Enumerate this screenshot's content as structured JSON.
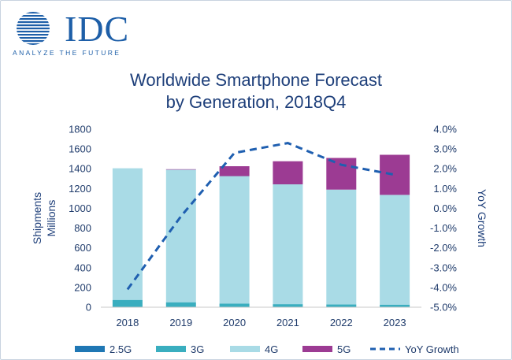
{
  "brand": {
    "name": "IDC",
    "tagline": "ANALYZE THE FUTURE",
    "color": "#1e5fa8"
  },
  "chart_data": {
    "type": "bar",
    "title_line1": "Worldwide Smartphone Forecast",
    "title_line2": "by Generation, 2018Q4",
    "categories": [
      "2018",
      "2019",
      "2020",
      "2021",
      "2022",
      "2023"
    ],
    "stacked": true,
    "series": [
      {
        "name": "2.5G",
        "color": "#1f77b4",
        "values": [
          4,
          2,
          1,
          1,
          1,
          1
        ]
      },
      {
        "name": "3G",
        "color": "#3aaebf",
        "values": [
          70,
          48,
          35,
          30,
          28,
          25
        ]
      },
      {
        "name": "4G",
        "color": "#a9dbe6",
        "values": [
          1331,
          1340,
          1290,
          1212,
          1160,
          1110
        ]
      },
      {
        "name": "5G",
        "color": "#9c3b93",
        "values": [
          0,
          5,
          100,
          233,
          320,
          405
        ]
      }
    ],
    "line_series": {
      "name": "YoY Growth",
      "color": "#1f5fb0",
      "values": [
        -4.1,
        -0.4,
        2.8,
        3.3,
        2.2,
        1.7
      ],
      "axis": "right"
    },
    "left_axis": {
      "label_line1": "Shipments",
      "label_line2": "Millions",
      "ylim": [
        0,
        1800
      ],
      "ticks": [
        "0",
        "200",
        "400",
        "600",
        "800",
        "1000",
        "1200",
        "1400",
        "1600",
        "1800"
      ]
    },
    "right_axis": {
      "label": "YoY Growth",
      "ylim": [
        -5.0,
        4.0
      ],
      "ticks": [
        "-5.0%",
        "-4.0%",
        "-3.0%",
        "-2.0%",
        "-1.0%",
        "0.0%",
        "1.0%",
        "2.0%",
        "3.0%",
        "4.0%"
      ]
    },
    "legend_position": "bottom",
    "legend": [
      "2.5G",
      "3G",
      "4G",
      "5G",
      "YoY Growth"
    ]
  }
}
